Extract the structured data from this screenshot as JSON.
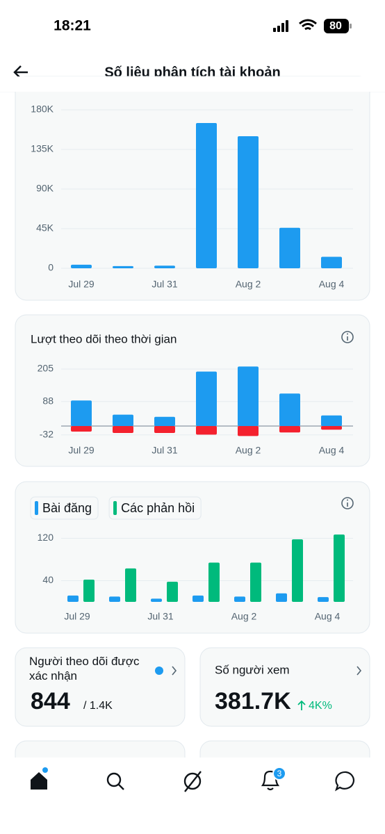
{
  "status_bar": {
    "time": "18:21",
    "battery": "80"
  },
  "header": {
    "title": "Số liệu phân tích tài khoản"
  },
  "chart_data": [
    {
      "type": "bar",
      "categories": [
        "Jul 29",
        null,
        "Jul 31",
        null,
        "Aug 2",
        null,
        "Aug 4"
      ],
      "series": [
        {
          "color": "#1d9bf0",
          "values": [
            4000,
            2500,
            3000,
            165000,
            150000,
            46000,
            13000
          ]
        }
      ],
      "ylim": [
        0,
        180000
      ],
      "yticks": [
        0,
        {
          "value": 45000,
          "label": "45K"
        },
        {
          "value": 90000,
          "label": "90K"
        },
        {
          "value": 135000,
          "label": "135K"
        },
        {
          "value": 180000,
          "label": "180K"
        }
      ],
      "grid": true
    },
    {
      "type": "bar",
      "title": "Lượt theo dõi theo thời gian",
      "categories": [
        "Jul 29",
        null,
        "Jul 31",
        null,
        "Aug 2",
        null,
        "Aug 4"
      ],
      "series": [
        {
          "color": "#1d9bf0",
          "values": [
            92,
            41,
            33,
            196,
            214,
            117,
            38
          ]
        },
        {
          "color": "#f4212e",
          "values": [
            -20,
            -25,
            -25,
            -31,
            -36,
            -23,
            -13
          ]
        }
      ],
      "ylim": [
        -40,
        215
      ],
      "yticks": [
        -32,
        88,
        205
      ],
      "grid": true
    },
    {
      "type": "bar",
      "categories": [
        "Jul 29",
        null,
        "Jul 31",
        null,
        "Aug 2",
        null,
        "Aug 4"
      ],
      "series": [
        {
          "name": "Bài đăng",
          "color": "#1d9bf0",
          "values": [
            12,
            10,
            6,
            12,
            10,
            16,
            9
          ]
        },
        {
          "name": "Các phản hồi",
          "color": "#00ba7c",
          "values": [
            42,
            63,
            38,
            74,
            74,
            118,
            127
          ]
        }
      ],
      "ylim": [
        0,
        135
      ],
      "yticks": [
        40,
        120
      ],
      "grid": true
    }
  ],
  "cards": [
    {
      "title": "Người theo dõi được xác nhận",
      "value": "844",
      "sub": "/ 1.4K"
    },
    {
      "title": "Số người xem",
      "value": "381.7K",
      "change": "4K%"
    }
  ],
  "nav": {
    "badge": "3"
  }
}
